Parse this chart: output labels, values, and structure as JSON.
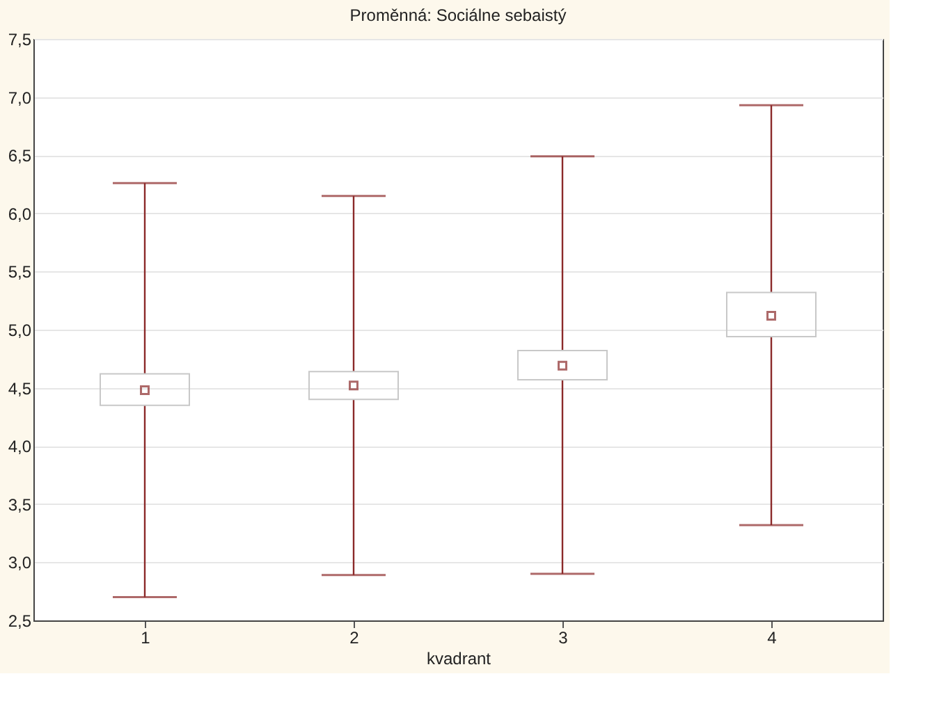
{
  "chart_data": {
    "type": "box",
    "title": "Proměnná: Sociálne sebaistý",
    "xlabel": "kvadrant",
    "categories": [
      "1",
      "2",
      "3",
      "4"
    ],
    "boxes": [
      {
        "low": 2.7,
        "q1": 4.35,
        "median": 4.48,
        "q3": 4.62,
        "high": 6.26
      },
      {
        "low": 2.89,
        "q1": 4.4,
        "median": 4.52,
        "q3": 4.64,
        "high": 6.15
      },
      {
        "low": 2.9,
        "q1": 4.57,
        "median": 4.69,
        "q3": 4.82,
        "high": 6.49
      },
      {
        "low": 3.32,
        "q1": 4.94,
        "median": 5.12,
        "q3": 5.32,
        "high": 6.93
      }
    ],
    "color": "#8b2a2a",
    "ylim": [
      2.5,
      7.5
    ],
    "yticks": [
      {
        "value": 2.5,
        "label": "2,5"
      },
      {
        "value": 3.0,
        "label": "3,0"
      },
      {
        "value": 3.5,
        "label": "3,5"
      },
      {
        "value": 4.0,
        "label": "4,0"
      },
      {
        "value": 4.5,
        "label": "4,5"
      },
      {
        "value": 5.0,
        "label": "5,0"
      },
      {
        "value": 5.5,
        "label": "5,5"
      },
      {
        "value": 6.0,
        "label": "6,0"
      },
      {
        "value": 6.5,
        "label": "6,5"
      },
      {
        "value": 7.0,
        "label": "7,0"
      },
      {
        "value": 7.5,
        "label": "7,5"
      }
    ],
    "grid": "y"
  }
}
